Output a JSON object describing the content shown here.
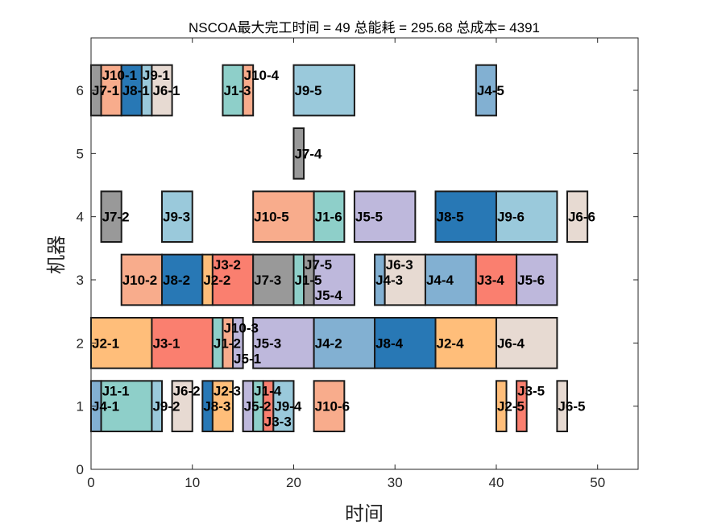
{
  "chart_data": {
    "type": "gantt",
    "title": "NSCOA最大完工时间 = 49 总能耗 = 295.68 总成本= 4391",
    "xlabel": "时间",
    "ylabel": "机器",
    "xlim": [
      0,
      54
    ],
    "ylim": [
      0,
      6.83
    ],
    "xticks": [
      0,
      10,
      20,
      30,
      40,
      50
    ],
    "yticks": [
      0,
      1,
      2,
      3,
      4,
      5,
      6
    ],
    "bar_height": 0.8,
    "job_colors": {
      "J1": "#8ECFC9",
      "J2": "#FFBE7A",
      "J3": "#FA7F6F",
      "J4": "#82B0D2",
      "J5": "#BEB8DC",
      "J6": "#E7DAD2",
      "J7": "#999999",
      "J8": "#2878B5",
      "J9": "#9AC9DB",
      "J10": "#F8AC8C"
    },
    "tasks": [
      {
        "machine": 6,
        "job": "J7",
        "label": "J7-1",
        "start": 0,
        "end": 1
      },
      {
        "machine": 6,
        "job": "J10",
        "label": "J10-1",
        "start": 1,
        "end": 3
      },
      {
        "machine": 6,
        "job": "J8",
        "label": "J8-1",
        "start": 3,
        "end": 5
      },
      {
        "machine": 6,
        "job": "J9",
        "label": "J9-1",
        "start": 5,
        "end": 6
      },
      {
        "machine": 6,
        "job": "J6",
        "label": "J6-1",
        "start": 6,
        "end": 8
      },
      {
        "machine": 6,
        "job": "J1",
        "label": "J1-3",
        "start": 13,
        "end": 15
      },
      {
        "machine": 6,
        "job": "J10",
        "label": "J10-4",
        "start": 15,
        "end": 16
      },
      {
        "machine": 6,
        "job": "J9",
        "label": "J9-5",
        "start": 20,
        "end": 26
      },
      {
        "machine": 6,
        "job": "J4",
        "label": "J4-5",
        "start": 38,
        "end": 40
      },
      {
        "machine": 5,
        "job": "J7",
        "label": "J7-4",
        "start": 20,
        "end": 21
      },
      {
        "machine": 4,
        "job": "J7",
        "label": "J7-2",
        "start": 1,
        "end": 3
      },
      {
        "machine": 4,
        "job": "J9",
        "label": "J9-3",
        "start": 7,
        "end": 10
      },
      {
        "machine": 4,
        "job": "J10",
        "label": "J10-5",
        "start": 16,
        "end": 22
      },
      {
        "machine": 4,
        "job": "J1",
        "label": "J1-6",
        "start": 22,
        "end": 25
      },
      {
        "machine": 4,
        "job": "J5",
        "label": "J5-5",
        "start": 26,
        "end": 32
      },
      {
        "machine": 4,
        "job": "J8",
        "label": "J8-5",
        "start": 34,
        "end": 40
      },
      {
        "machine": 4,
        "job": "J9",
        "label": "J9-6",
        "start": 40,
        "end": 46
      },
      {
        "machine": 4,
        "job": "J6",
        "label": "J6-6",
        "start": 47,
        "end": 49
      },
      {
        "machine": 3,
        "job": "J10",
        "label": "J10-2",
        "start": 3,
        "end": 7
      },
      {
        "machine": 3,
        "job": "J8",
        "label": "J8-2",
        "start": 7,
        "end": 11
      },
      {
        "machine": 3,
        "job": "J2",
        "label": "J2-2",
        "start": 11,
        "end": 12
      },
      {
        "machine": 3,
        "job": "J3",
        "label": "J3-2",
        "start": 12,
        "end": 16
      },
      {
        "machine": 3,
        "job": "J7",
        "label": "J7-3",
        "start": 16,
        "end": 20
      },
      {
        "machine": 3,
        "job": "J1",
        "label": "J1-5",
        "start": 20,
        "end": 21
      },
      {
        "machine": 3,
        "job": "J7",
        "label": "J7-5",
        "start": 21,
        "end": 22
      },
      {
        "machine": 3,
        "job": "J5",
        "label": "J5-4",
        "start": 22,
        "end": 26
      },
      {
        "machine": 3,
        "job": "J4",
        "label": "J4-3",
        "start": 28,
        "end": 29
      },
      {
        "machine": 3,
        "job": "J6",
        "label": "J6-3",
        "start": 29,
        "end": 33
      },
      {
        "machine": 3,
        "job": "J4",
        "label": "J4-4",
        "start": 33,
        "end": 38
      },
      {
        "machine": 3,
        "job": "J3",
        "label": "J3-4",
        "start": 38,
        "end": 42
      },
      {
        "machine": 3,
        "job": "J5",
        "label": "J5-6",
        "start": 42,
        "end": 46
      },
      {
        "machine": 2,
        "job": "J2",
        "label": "J2-1",
        "start": 0,
        "end": 6
      },
      {
        "machine": 2,
        "job": "J3",
        "label": "J3-1",
        "start": 6,
        "end": 12
      },
      {
        "machine": 2,
        "job": "J1",
        "label": "J1-2",
        "start": 12,
        "end": 13
      },
      {
        "machine": 2,
        "job": "J10",
        "label": "J10-3",
        "start": 13,
        "end": 14
      },
      {
        "machine": 2,
        "job": "J5",
        "label": "J5-1",
        "start": 14,
        "end": 15
      },
      {
        "machine": 2,
        "job": "J5",
        "label": "J5-3",
        "start": 16,
        "end": 22
      },
      {
        "machine": 2,
        "job": "J4",
        "label": "J4-2",
        "start": 22,
        "end": 28
      },
      {
        "machine": 2,
        "job": "J8",
        "label": "J8-4",
        "start": 28,
        "end": 34
      },
      {
        "machine": 2,
        "job": "J2",
        "label": "J2-4",
        "start": 34,
        "end": 40
      },
      {
        "machine": 2,
        "job": "J6",
        "label": "J6-4",
        "start": 40,
        "end": 46
      },
      {
        "machine": 1,
        "job": "J4",
        "label": "J4-1",
        "start": 0,
        "end": 1
      },
      {
        "machine": 1,
        "job": "J1",
        "label": "J1-1",
        "start": 1,
        "end": 6
      },
      {
        "machine": 1,
        "job": "J9",
        "label": "J9-2",
        "start": 6,
        "end": 7
      },
      {
        "machine": 1,
        "job": "J6",
        "label": "J6-2",
        "start": 8,
        "end": 10
      },
      {
        "machine": 1,
        "job": "J8",
        "label": "J8-3",
        "start": 11,
        "end": 12
      },
      {
        "machine": 1,
        "job": "J2",
        "label": "J2-3",
        "start": 12,
        "end": 14
      },
      {
        "machine": 1,
        "job": "J5",
        "label": "J5-2",
        "start": 15,
        "end": 16
      },
      {
        "machine": 1,
        "job": "J1",
        "label": "J1-4",
        "start": 16,
        "end": 17
      },
      {
        "machine": 1,
        "job": "J3",
        "label": "J3-3",
        "start": 17,
        "end": 18
      },
      {
        "machine": 1,
        "job": "J9",
        "label": "J9-4",
        "start": 18,
        "end": 20
      },
      {
        "machine": 1,
        "job": "J10",
        "label": "J10-6",
        "start": 22,
        "end": 25
      },
      {
        "machine": 1,
        "job": "J2",
        "label": "J2-5",
        "start": 40,
        "end": 41
      },
      {
        "machine": 1,
        "job": "J3",
        "label": "J3-5",
        "start": 42,
        "end": 43
      },
      {
        "machine": 1,
        "job": "J6",
        "label": "J6-5",
        "start": 46,
        "end": 47
      }
    ]
  }
}
